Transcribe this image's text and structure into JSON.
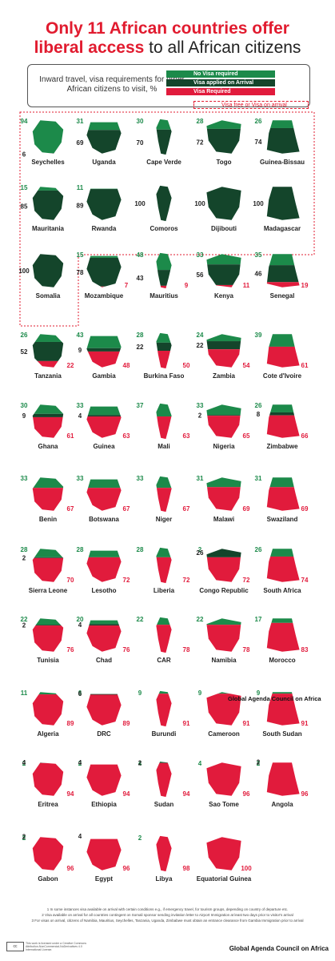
{
  "title": {
    "line1": "Only 11 African countries offer",
    "line2a": "liberal access",
    "line2b": " to all African citizens"
  },
  "legend": {
    "caption": "Inward travel, visa requirements for other African citizens to visit, %",
    "items": [
      {
        "label": "No Visa required",
        "color": "#1c8a4a"
      },
      {
        "label": "Visa applied on Arrival",
        "color": "#14452b"
      },
      {
        "label": "Visa Required",
        "color": "#e11b3c"
      },
      {
        "label": "Visa free or Visa on arrival",
        "color": "#e11b2f"
      }
    ]
  },
  "colors": {
    "no_visa": "#1c8a4a",
    "on_arrival": "#14452b",
    "required": "#e11b3c"
  },
  "chart_data": {
    "type": "bar",
    "title": "Only 11 African countries offer liberal access to all African citizens",
    "ylabel": "Inward travel, visa requirements for other African citizens to visit, %",
    "series_names": [
      "No Visa required",
      "Visa applied on Arrival",
      "Visa Required"
    ],
    "countries": [
      {
        "name": "Seychelles",
        "no_visa": 94,
        "on_arrival": 6,
        "required": 0
      },
      {
        "name": "Uganda",
        "no_visa": 31,
        "on_arrival": 69,
        "required": 0
      },
      {
        "name": "Cape Verde",
        "no_visa": 30,
        "on_arrival": 70,
        "required": 0
      },
      {
        "name": "Togo",
        "no_visa": 28,
        "on_arrival": 72,
        "required": 0
      },
      {
        "name": "Guinea-Bissau",
        "no_visa": 26,
        "on_arrival": 74,
        "required": 0
      },
      {
        "name": "Mauritania",
        "no_visa": 15,
        "on_arrival": 85,
        "required": 0
      },
      {
        "name": "Rwanda",
        "no_visa": 11,
        "on_arrival": 89,
        "required": 0
      },
      {
        "name": "Comoros",
        "no_visa": 0,
        "on_arrival": 100,
        "required": 0
      },
      {
        "name": "Dijibouti",
        "no_visa": 0,
        "on_arrival": 100,
        "required": 0
      },
      {
        "name": "Madagascar",
        "no_visa": 0,
        "on_arrival": 100,
        "required": 0
      },
      {
        "name": "Somalia",
        "no_visa": 0,
        "on_arrival": 100,
        "required": 0
      },
      {
        "name": "Mozambique",
        "no_visa": 15,
        "on_arrival": 78,
        "required": 7
      },
      {
        "name": "Mauritius",
        "no_visa": 48,
        "on_arrival": 43,
        "required": 9
      },
      {
        "name": "Kenya",
        "no_visa": 33,
        "on_arrival": 56,
        "required": 11
      },
      {
        "name": "Senegal",
        "no_visa": 35,
        "on_arrival": 46,
        "required": 19
      },
      {
        "name": "Tanzania",
        "no_visa": 26,
        "on_arrival": 52,
        "required": 22
      },
      {
        "name": "Gambia",
        "no_visa": 43,
        "on_arrival": 9,
        "required": 48
      },
      {
        "name": "Burkina Faso",
        "no_visa": 28,
        "on_arrival": 22,
        "required": 50
      },
      {
        "name": "Zambia",
        "no_visa": 24,
        "on_arrival": 22,
        "required": 54
      },
      {
        "name": "Cote d'Ivoire",
        "no_visa": 39,
        "on_arrival": 0,
        "required": 61
      },
      {
        "name": "Ghana",
        "no_visa": 30,
        "on_arrival": 9,
        "required": 61
      },
      {
        "name": "Guinea",
        "no_visa": 33,
        "on_arrival": 4,
        "required": 63
      },
      {
        "name": "Mali",
        "no_visa": 37,
        "on_arrival": 0,
        "required": 63
      },
      {
        "name": "Nigeria",
        "no_visa": 33,
        "on_arrival": 2,
        "required": 65
      },
      {
        "name": "Zimbabwe",
        "no_visa": 26,
        "on_arrival": 8,
        "required": 66
      },
      {
        "name": "Benin",
        "no_visa": 33,
        "on_arrival": 0,
        "required": 67
      },
      {
        "name": "Botswana",
        "no_visa": 33,
        "on_arrival": 0,
        "required": 67
      },
      {
        "name": "Niger",
        "no_visa": 33,
        "on_arrival": 0,
        "required": 67
      },
      {
        "name": "Malawi",
        "no_visa": 31,
        "on_arrival": 0,
        "required": 69
      },
      {
        "name": "Swaziland",
        "no_visa": 31,
        "on_arrival": 0,
        "required": 69
      },
      {
        "name": "Sierra Leone",
        "no_visa": 28,
        "on_arrival": 2,
        "required": 70
      },
      {
        "name": "Lesotho",
        "no_visa": 28,
        "on_arrival": 0,
        "required": 72
      },
      {
        "name": "Liberia",
        "no_visa": 28,
        "on_arrival": 0,
        "required": 72
      },
      {
        "name": "Congo Republic",
        "no_visa": 2,
        "on_arrival": 26,
        "required": 72
      },
      {
        "name": "South Africa",
        "no_visa": 26,
        "on_arrival": 0,
        "required": 74
      },
      {
        "name": "Tunisia",
        "no_visa": 22,
        "on_arrival": 2,
        "required": 76
      },
      {
        "name": "Chad",
        "no_visa": 20,
        "on_arrival": 4,
        "required": 76
      },
      {
        "name": "CAR",
        "no_visa": 22,
        "on_arrival": 0,
        "required": 78
      },
      {
        "name": "Namibia",
        "no_visa": 22,
        "on_arrival": 0,
        "required": 78
      },
      {
        "name": "Morocco",
        "no_visa": 17,
        "on_arrival": 0,
        "required": 83
      },
      {
        "name": "Algeria",
        "no_visa": 11,
        "on_arrival": 0,
        "required": 89
      },
      {
        "name": "DRC",
        "no_visa": 6,
        "on_arrival": 6,
        "required": 89
      },
      {
        "name": "Burundi",
        "no_visa": 9,
        "on_arrival": 0,
        "required": 91
      },
      {
        "name": "Cameroon",
        "no_visa": 9,
        "on_arrival": 0,
        "required": 91
      },
      {
        "name": "South Sudan",
        "no_visa": 9,
        "on_arrival": 0,
        "required": 91
      },
      {
        "name": "Eritrea",
        "no_visa": 2,
        "on_arrival": 4,
        "required": 94
      },
      {
        "name": "Ethiopia",
        "no_visa": 2,
        "on_arrival": 4,
        "required": 94
      },
      {
        "name": "Sudan",
        "no_visa": 4,
        "on_arrival": 2,
        "required": 94
      },
      {
        "name": "Sao Tome",
        "no_visa": 4,
        "on_arrival": 0,
        "required": 96
      },
      {
        "name": "Angola",
        "no_visa": 2,
        "on_arrival": 2,
        "required": 96
      },
      {
        "name": "Gabon",
        "no_visa": 2,
        "on_arrival": 2,
        "required": 96
      },
      {
        "name": "Egypt",
        "no_visa": 0,
        "on_arrival": 4,
        "required": 96
      },
      {
        "name": "Libya",
        "no_visa": 2,
        "on_arrival": 0,
        "required": 98
      },
      {
        "name": "Equatorial Guinea",
        "no_visa": 0,
        "on_arrival": 0,
        "required": 100
      }
    ]
  },
  "mid_credit": "Global Agenda Council on Africa",
  "footnotes": [
    "1 In some instances visa available on arrival with certain conditions e.g., if emergency travel, for tourism groups, depending on country of departure etc.",
    "2 Visa available on arrival for all countries contingent on Somali sponsor sending invitation letter to Airport Immigration at least two days prior to visitor's arrival",
    "3 For visas on arrival, citizens of Namibia, Mauritius, Seychelles, Tanzania, Uganda, Zimbabwe must obtain an entrance clearance from Gambia Immigration prior to arrival"
  ],
  "cc_label": "cc",
  "cc_text": "This work is licensed under a Creative Commons Attribution-NonCommercial-NoDerivatives 4.0 International License.",
  "bottom_credit": "Global Agenda Council on Africa"
}
